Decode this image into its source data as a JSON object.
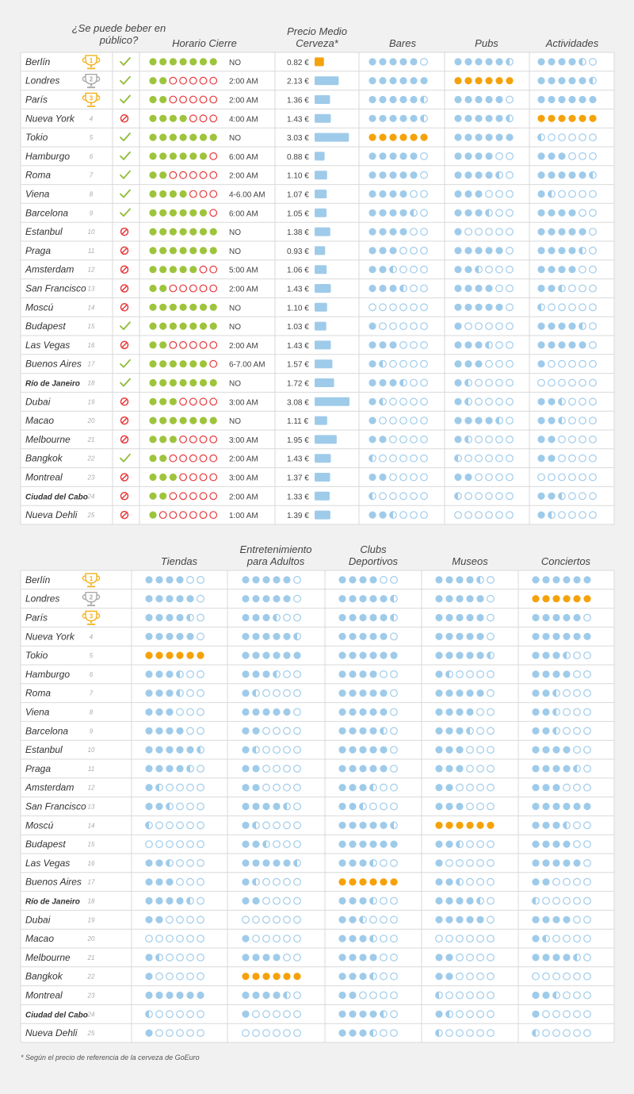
{
  "chart_data": [
    {
      "type": "table",
      "columns": {
        "publico": "¿Se puede beber en público?",
        "horario": "Horario Cierre",
        "precio": "Precio Medio Cerveza*",
        "bares": "Bares",
        "pubs": "Pubs",
        "actividades": "Actividades"
      },
      "rows": [
        {
          "rank": 1,
          "city": "Berlín",
          "publico": true,
          "horario_dots": 7,
          "horario": "NO",
          "precio": 0.82,
          "precio_label": "0.82 €",
          "bares": 5,
          "pubs": 5.5,
          "actividades": 4.5
        },
        {
          "rank": 2,
          "city": "Londres",
          "publico": true,
          "horario_dots": 2,
          "horario": "2:00 AM",
          "precio": 2.13,
          "precio_label": "2.13 €",
          "bares": 6,
          "pubs": 6,
          "actividades": 5.5
        },
        {
          "rank": 3,
          "city": "París",
          "publico": true,
          "horario_dots": 2,
          "horario": "2:00 AM",
          "precio": 1.36,
          "precio_label": "1.36 €",
          "bares": 5.5,
          "pubs": 5,
          "actividades": 6
        },
        {
          "rank": 4,
          "city": "Nueva York",
          "publico": false,
          "horario_dots": 4,
          "horario": "4:00 AM",
          "precio": 1.43,
          "precio_label": "1.43 €",
          "bares": 5.5,
          "pubs": 5.5,
          "actividades": 6
        },
        {
          "rank": 5,
          "city": "Tokio",
          "publico": true,
          "horario_dots": 7,
          "horario": "NO",
          "precio": 3.03,
          "precio_label": "3.03 €",
          "bares": 6,
          "pubs": 6,
          "actividades": 0.5
        },
        {
          "rank": 6,
          "city": "Hamburgo",
          "publico": true,
          "horario_dots": 6,
          "horario": "6:00 AM",
          "precio": 0.88,
          "precio_label": "0.88 €",
          "bares": 5,
          "pubs": 4,
          "actividades": 3
        },
        {
          "rank": 7,
          "city": "Roma",
          "publico": true,
          "horario_dots": 2,
          "horario": "2:00 AM",
          "precio": 1.1,
          "precio_label": "1.10 €",
          "bares": 5,
          "pubs": 4.5,
          "actividades": 5.5
        },
        {
          "rank": 8,
          "city": "Viena",
          "publico": true,
          "horario_dots": 4,
          "horario": "4-6.00 AM",
          "precio": 1.07,
          "precio_label": "1.07 €",
          "bares": 4,
          "pubs": 3,
          "actividades": 1.5
        },
        {
          "rank": 9,
          "city": "Barcelona",
          "publico": true,
          "horario_dots": 6,
          "horario": "6:00 AM",
          "precio": 1.05,
          "precio_label": "1.05 €",
          "bares": 4.5,
          "pubs": 3.5,
          "actividades": 4
        },
        {
          "rank": 10,
          "city": "Estanbul",
          "publico": false,
          "horario_dots": 7,
          "horario": "NO",
          "precio": 1.38,
          "precio_label": "1.38 €",
          "bares": 4,
          "pubs": 1,
          "actividades": 5
        },
        {
          "rank": 11,
          "city": "Praga",
          "publico": false,
          "horario_dots": 7,
          "horario": "NO",
          "precio": 0.93,
          "precio_label": "0.93 €",
          "bares": 3,
          "pubs": 5,
          "actividades": 4.5
        },
        {
          "rank": 12,
          "city": "Amsterdam",
          "publico": false,
          "horario_dots": 5,
          "horario": "5:00 AM",
          "precio": 1.06,
          "precio_label": "1.06 €",
          "bares": 2.5,
          "pubs": 2.5,
          "actividades": 4
        },
        {
          "rank": 13,
          "city": "San Francisco",
          "publico": false,
          "horario_dots": 2,
          "horario": "2:00 AM",
          "precio": 1.43,
          "precio_label": "1.43 €",
          "bares": 3.5,
          "pubs": 4,
          "actividades": 2.5
        },
        {
          "rank": 14,
          "city": "Moscú",
          "publico": false,
          "horario_dots": 7,
          "horario": "NO",
          "precio": 1.1,
          "precio_label": "1.10 €",
          "bares": 0,
          "pubs": 5,
          "actividades": 0.5
        },
        {
          "rank": 15,
          "city": "Budapest",
          "publico": true,
          "horario_dots": 7,
          "horario": "NO",
          "precio": 1.03,
          "precio_label": "1.03 €",
          "bares": 1,
          "pubs": 1,
          "actividades": 4.5
        },
        {
          "rank": 16,
          "city": "Las Vegas",
          "publico": false,
          "horario_dots": 2,
          "horario": "2:00 AM",
          "precio": 1.43,
          "precio_label": "1.43 €",
          "bares": 3,
          "pubs": 3.5,
          "actividades": 5
        },
        {
          "rank": 17,
          "city": "Buenos Aires",
          "publico": true,
          "horario_dots": 6,
          "horario": "6-7.00 AM",
          "precio": 1.57,
          "precio_label": "1.57 €",
          "bares": 1.5,
          "pubs": 3,
          "actividades": 1
        },
        {
          "rank": 18,
          "city": "Río de Janeiro",
          "publico": true,
          "horario_dots": 7,
          "horario": "NO",
          "precio": 1.72,
          "precio_label": "1.72 €",
          "bares": 3.5,
          "pubs": 1.5,
          "actividades": 0
        },
        {
          "rank": 19,
          "city": "Dubai",
          "publico": false,
          "horario_dots": 3,
          "horario": "3:00 AM",
          "precio": 3.08,
          "precio_label": "3.08 €",
          "bares": 1.5,
          "pubs": 1.5,
          "actividades": 2.5
        },
        {
          "rank": 20,
          "city": "Macao",
          "publico": false,
          "horario_dots": 7,
          "horario": "NO",
          "precio": 1.11,
          "precio_label": "1.11 €",
          "bares": 1,
          "pubs": 4.5,
          "actividades": 2.5
        },
        {
          "rank": 21,
          "city": "Melbourne",
          "publico": false,
          "horario_dots": 3,
          "horario": "3:00 AM",
          "precio": 1.95,
          "precio_label": "1.95 €",
          "bares": 2,
          "pubs": 1.5,
          "actividades": 2
        },
        {
          "rank": 22,
          "city": "Bangkok",
          "publico": true,
          "horario_dots": 2,
          "horario": "2:00 AM",
          "precio": 1.43,
          "precio_label": "1.43 €",
          "bares": 0.5,
          "pubs": 0.5,
          "actividades": 2
        },
        {
          "rank": 23,
          "city": "Montreal",
          "publico": false,
          "horario_dots": 3,
          "horario": "3:00 AM",
          "precio": 1.37,
          "precio_label": "1.37 €",
          "bares": 2,
          "pubs": 2,
          "actividades": 0
        },
        {
          "rank": 24,
          "city": "Ciudad del Cabo",
          "publico": false,
          "horario_dots": 2,
          "horario": "2:00 AM",
          "precio": 1.33,
          "precio_label": "1.33 €",
          "bares": 0.5,
          "pubs": 0.5,
          "actividades": 2.5
        },
        {
          "rank": 25,
          "city": "Nueva Dehli",
          "publico": false,
          "horario_dots": 1,
          "horario": "1:00 AM",
          "precio": 1.39,
          "precio_label": "1.39 €",
          "bares": 2.5,
          "pubs": 0,
          "actividades": 1.5
        }
      ],
      "highlight": {
        "bares": 5,
        "pubs": 2,
        "actividades": 4
      }
    },
    {
      "type": "table",
      "columns": {
        "tiendas": "Tiendas",
        "adultos": "Entretenimiento para Adultos",
        "clubs": "Clubs Deportivos",
        "museos": "Museos",
        "conciertos": "Conciertos"
      },
      "rows": [
        {
          "rank": 1,
          "city": "Berlín",
          "tiendas": 4,
          "adultos": 5,
          "clubs": 4,
          "museos": 4.5,
          "conciertos": 6
        },
        {
          "rank": 2,
          "city": "Londres",
          "tiendas": 5,
          "adultos": 5,
          "clubs": 5.5,
          "museos": 5,
          "conciertos": 6
        },
        {
          "rank": 3,
          "city": "París",
          "tiendas": 4.5,
          "adultos": 3.5,
          "clubs": 5.5,
          "museos": 5,
          "conciertos": 5
        },
        {
          "rank": 4,
          "city": "Nueva York",
          "tiendas": 5,
          "adultos": 5.5,
          "clubs": 5,
          "museos": 5,
          "conciertos": 6
        },
        {
          "rank": 5,
          "city": "Tokio",
          "tiendas": 6,
          "adultos": 6,
          "clubs": 6,
          "museos": 5.5,
          "conciertos": 3.5
        },
        {
          "rank": 6,
          "city": "Hamburgo",
          "tiendas": 3.5,
          "adultos": 3.5,
          "clubs": 4,
          "museos": 1.5,
          "conciertos": 4
        },
        {
          "rank": 7,
          "city": "Roma",
          "tiendas": 3.5,
          "adultos": 1.5,
          "clubs": 5,
          "museos": 5,
          "conciertos": 2.5
        },
        {
          "rank": 8,
          "city": "Viena",
          "tiendas": 3,
          "adultos": 5,
          "clubs": 5,
          "museos": 4,
          "conciertos": 2.5
        },
        {
          "rank": 9,
          "city": "Barcelona",
          "tiendas": 4,
          "adultos": 2,
          "clubs": 4.5,
          "museos": 3.5,
          "conciertos": 2.5
        },
        {
          "rank": 10,
          "city": "Estanbul",
          "tiendas": 5.5,
          "adultos": 1.5,
          "clubs": 5,
          "museos": 3,
          "conciertos": 4
        },
        {
          "rank": 11,
          "city": "Praga",
          "tiendas": 4.5,
          "adultos": 2,
          "clubs": 5,
          "museos": 3,
          "conciertos": 4.5
        },
        {
          "rank": 12,
          "city": "Amsterdam",
          "tiendas": 1.5,
          "adultos": 2,
          "clubs": 3.5,
          "museos": 2,
          "conciertos": 3
        },
        {
          "rank": 13,
          "city": "San Francisco",
          "tiendas": 2.5,
          "adultos": 4.5,
          "clubs": 2.5,
          "museos": 3,
          "conciertos": 6
        },
        {
          "rank": 14,
          "city": "Moscú",
          "tiendas": 0.5,
          "adultos": 1.5,
          "clubs": 5.5,
          "museos": 6,
          "conciertos": 3.5
        },
        {
          "rank": 15,
          "city": "Budapest",
          "tiendas": 0,
          "adultos": 2.5,
          "clubs": 6,
          "museos": 2.5,
          "conciertos": 4
        },
        {
          "rank": 16,
          "city": "Las Vegas",
          "tiendas": 2.5,
          "adultos": 5.5,
          "clubs": 3.5,
          "museos": 1,
          "conciertos": 5
        },
        {
          "rank": 17,
          "city": "Buenos Aires",
          "tiendas": 3,
          "adultos": 1.5,
          "clubs": 6,
          "museos": 2.5,
          "conciertos": 2
        },
        {
          "rank": 18,
          "city": "Río de Janeiro",
          "tiendas": 4.5,
          "adultos": 2,
          "clubs": 3.5,
          "museos": 4.5,
          "conciertos": 0.5
        },
        {
          "rank": 19,
          "city": "Dubai",
          "tiendas": 2,
          "adultos": 0,
          "clubs": 2.5,
          "museos": 5,
          "conciertos": 4
        },
        {
          "rank": 20,
          "city": "Macao",
          "tiendas": 0,
          "adultos": 1,
          "clubs": 3.5,
          "museos": 0,
          "conciertos": 1.5
        },
        {
          "rank": 21,
          "city": "Melbourne",
          "tiendas": 1.5,
          "adultos": 4,
          "clubs": 4,
          "museos": 2,
          "conciertos": 4.5
        },
        {
          "rank": 22,
          "city": "Bangkok",
          "tiendas": 1,
          "adultos": 6,
          "clubs": 3.5,
          "museos": 2,
          "conciertos": 0
        },
        {
          "rank": 23,
          "city": "Montreal",
          "tiendas": 6,
          "adultos": 4.5,
          "clubs": 2,
          "museos": 0.5,
          "conciertos": 2.5
        },
        {
          "rank": 24,
          "city": "Ciudad del Cabo",
          "tiendas": 0.5,
          "adultos": 1,
          "clubs": 4.5,
          "museos": 1.5,
          "conciertos": 1
        },
        {
          "rank": 25,
          "city": "Nueva Dehli",
          "tiendas": 1,
          "adultos": 0,
          "clubs": 3.5,
          "museos": 0.5,
          "conciertos": 0.5
        }
      ],
      "highlight": {
        "tiendas": 5,
        "adultos": 22,
        "clubs": 17,
        "museos": 14,
        "conciertos": 2
      }
    }
  ],
  "footnote": "* Según el precio de referencia de la cerveza de GoEuro",
  "colors": {
    "blue": "#9fcbea",
    "orange": "#f5a20a",
    "green": "#9ec43c",
    "red": "#e8383b",
    "check": "#8fbb36",
    "bar": "#9fcbea",
    "price_low": "#f5a20a",
    "gold": "#f2b21c",
    "silver": "#a9a9a9",
    "grid": "#d9d9d9",
    "row_bg": "#ffffff",
    "page_bg": "#f1f1f1"
  }
}
